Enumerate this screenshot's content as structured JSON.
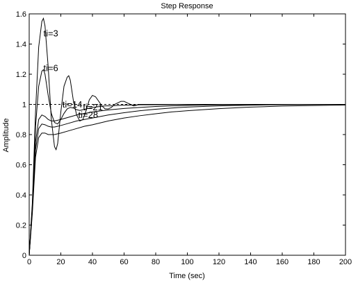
{
  "chart_data": {
    "type": "line",
    "title": "Step Response",
    "xlabel": "Time (sec)",
    "ylabel": "Amplitude",
    "xlim": [
      0,
      200
    ],
    "ylim": [
      0,
      1.6
    ],
    "xticks": [
      0,
      20,
      40,
      60,
      80,
      100,
      120,
      140,
      160,
      180,
      200
    ],
    "yticks": [
      0,
      0.2,
      0.4,
      0.6,
      0.8,
      1,
      1.2,
      1.4,
      1.6
    ],
    "xtick_labels": [
      "0",
      "20",
      "40",
      "60",
      "80",
      "100",
      "120",
      "140",
      "160",
      "180",
      "200"
    ],
    "ytick_labels": [
      "0",
      "0.2",
      "0.4",
      "0.6",
      "0.8",
      "1",
      "1.2",
      "1.4",
      "1.6"
    ],
    "grid": false,
    "reference_line": {
      "y": 1,
      "style": "dashed"
    },
    "series": [
      {
        "name": "ti=3",
        "x": [
          0,
          2,
          4,
          6,
          8,
          9,
          10,
          12,
          14,
          16,
          17,
          18,
          20,
          22,
          24,
          25,
          26,
          28,
          30,
          32,
          34,
          36,
          38,
          40,
          42,
          44,
          46,
          48,
          50,
          52,
          54,
          56,
          58,
          60,
          62,
          64,
          66,
          70,
          75,
          80,
          90,
          100,
          120,
          150,
          200
        ],
        "y": [
          0,
          0.35,
          0.95,
          1.38,
          1.55,
          1.57,
          1.52,
          1.25,
          0.9,
          0.72,
          0.7,
          0.74,
          0.95,
          1.12,
          1.18,
          1.19,
          1.16,
          1.02,
          0.93,
          0.89,
          0.9,
          0.96,
          1.03,
          1.06,
          1.05,
          1.02,
          0.99,
          0.97,
          0.97,
          0.98,
          1.0,
          1.01,
          1.02,
          1.02,
          1.01,
          1.0,
          0.99,
          1.0,
          1.0,
          1.0,
          1.0,
          1.0,
          1.0,
          1.0,
          1.0
        ]
      },
      {
        "name": "ti=6",
        "x": [
          0,
          2,
          4,
          6,
          8,
          9,
          10,
          12,
          14,
          16,
          18,
          20,
          22,
          24,
          26,
          28,
          30,
          32,
          34,
          36,
          38,
          40,
          44,
          48,
          52,
          56,
          60,
          70,
          80,
          100,
          120,
          150,
          200
        ],
        "y": [
          0,
          0.33,
          0.85,
          1.12,
          1.22,
          1.23,
          1.2,
          1.06,
          0.94,
          0.88,
          0.87,
          0.9,
          0.94,
          0.97,
          0.98,
          0.975,
          0.965,
          0.96,
          0.965,
          0.97,
          0.975,
          0.98,
          0.985,
          0.99,
          0.99,
          0.993,
          0.995,
          0.997,
          0.998,
          0.999,
          1.0,
          1.0,
          1.0
        ]
      },
      {
        "name": "ti=14",
        "x": [
          0,
          2,
          4,
          6,
          8,
          10,
          12,
          14,
          16,
          18,
          20,
          25,
          30,
          35,
          40,
          50,
          60,
          70,
          80,
          90,
          100,
          120,
          140,
          160,
          200
        ],
        "y": [
          0,
          0.32,
          0.75,
          0.9,
          0.93,
          0.92,
          0.9,
          0.89,
          0.89,
          0.895,
          0.9,
          0.915,
          0.93,
          0.94,
          0.95,
          0.963,
          0.973,
          0.98,
          0.986,
          0.99,
          0.993,
          0.997,
          0.999,
          1.0,
          1.0
        ]
      },
      {
        "name": "ti=21",
        "x": [
          0,
          2,
          4,
          6,
          8,
          10,
          12,
          14,
          16,
          18,
          20,
          25,
          30,
          35,
          40,
          50,
          60,
          70,
          80,
          90,
          100,
          120,
          140,
          160,
          200
        ],
        "y": [
          0,
          0.3,
          0.7,
          0.84,
          0.87,
          0.865,
          0.855,
          0.85,
          0.85,
          0.855,
          0.86,
          0.875,
          0.89,
          0.9,
          0.91,
          0.93,
          0.945,
          0.958,
          0.968,
          0.976,
          0.982,
          0.99,
          0.995,
          0.998,
          1.0
        ]
      },
      {
        "name": "ti=28",
        "x": [
          0,
          2,
          4,
          6,
          8,
          10,
          12,
          14,
          16,
          18,
          20,
          25,
          30,
          35,
          40,
          50,
          60,
          70,
          80,
          90,
          100,
          120,
          140,
          160,
          200
        ],
        "y": [
          0,
          0.28,
          0.65,
          0.78,
          0.81,
          0.81,
          0.8,
          0.8,
          0.8,
          0.805,
          0.81,
          0.825,
          0.84,
          0.855,
          0.865,
          0.89,
          0.91,
          0.925,
          0.938,
          0.95,
          0.958,
          0.972,
          0.982,
          0.989,
          0.996
        ]
      }
    ],
    "annotations": [
      {
        "text": "ti=3",
        "x": 9,
        "y": 1.45
      },
      {
        "text": "ti=6",
        "x": 9,
        "y": 1.22
      },
      {
        "text": "ti=14",
        "x": 21,
        "y": 0.98
      },
      {
        "text": "ti=21",
        "x": 34,
        "y": 0.96
      },
      {
        "text": "ti=28",
        "x": 31,
        "y": 0.91
      }
    ]
  }
}
